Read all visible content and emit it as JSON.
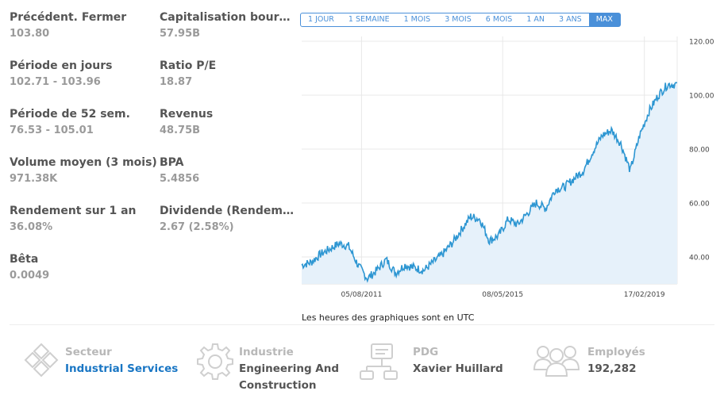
{
  "stats": [
    {
      "label": "Précédent. Fermer",
      "value": "103.80"
    },
    {
      "label": "Capitalisation bour…",
      "value": "57.95B"
    },
    {
      "label": "Période en jours",
      "value": "102.71 - 103.96"
    },
    {
      "label": "Ratio P/E",
      "value": "18.87"
    },
    {
      "label": "Période de 52 sem.",
      "value": "76.53 - 105.01"
    },
    {
      "label": "Revenus",
      "value": "48.75B"
    },
    {
      "label": "Volume moyen (3 mois)",
      "value": "971.38K"
    },
    {
      "label": "BPA",
      "value": "5.4856"
    },
    {
      "label": "Rendement sur 1 an",
      "value": "36.08%"
    },
    {
      "label": "Dividende (Rendem…",
      "value": "2.67 (2.58%)"
    },
    {
      "label": "Bêta",
      "value": "0.0049"
    }
  ],
  "ranges": [
    "1 JOUR",
    "1 SEMAINE",
    "1 MOIS",
    "3 MOIS",
    "6 MOIS",
    "1 AN",
    "3 ANS",
    "MAX"
  ],
  "active_range": "MAX",
  "chart_note": "Les heures des graphiques sont en UTC",
  "chart_data": {
    "type": "area",
    "title": "",
    "xlabel": "",
    "ylabel": "",
    "ylim": [
      30,
      120
    ],
    "y_ticks": [
      "40.00",
      "60.00",
      "80.00",
      "100.00",
      "120.00"
    ],
    "x_ticks": [
      "05/08/2011",
      "08/05/2015",
      "17/02/2019"
    ],
    "grid": true,
    "color": "#2d96d2",
    "fill": "#e6f1fa",
    "x": [
      "2010-01",
      "2010-04",
      "2010-07",
      "2010-10",
      "2011-01",
      "2011-04",
      "2011-07",
      "2011-10",
      "2012-01",
      "2012-04",
      "2012-07",
      "2012-10",
      "2013-01",
      "2013-04",
      "2013-07",
      "2013-10",
      "2014-01",
      "2014-04",
      "2014-07",
      "2014-10",
      "2015-01",
      "2015-04",
      "2015-07",
      "2015-10",
      "2016-01",
      "2016-04",
      "2016-07",
      "2016-10",
      "2017-01",
      "2017-04",
      "2017-07",
      "2017-10",
      "2018-01",
      "2018-04",
      "2018-07",
      "2018-10",
      "2019-01",
      "2019-04",
      "2019-07",
      "2019-10"
    ],
    "values": [
      37,
      38,
      41,
      43,
      45,
      44,
      37,
      32,
      35,
      39,
      34,
      37,
      36,
      35,
      38,
      41,
      45,
      50,
      55,
      54,
      46,
      48,
      54,
      52,
      56,
      60,
      58,
      65,
      66,
      69,
      72,
      79,
      85,
      87,
      82,
      72,
      85,
      94,
      100,
      104
    ]
  },
  "info": [
    {
      "icon": "sector-diamonds-icon",
      "label": "Secteur",
      "value": [
        "Industrial Services"
      ],
      "link": true
    },
    {
      "icon": "industry-gear-icon",
      "label": "Industrie",
      "value": [
        "Engineering And",
        "Construction"
      ],
      "link": false
    },
    {
      "icon": "ceo-org-chart-icon",
      "label": "PDG",
      "value": [
        "Xavier Huillard"
      ],
      "link": false
    },
    {
      "icon": "employees-people-icon",
      "label": "Employés",
      "value": [
        "192,282"
      ],
      "link": false
    }
  ]
}
